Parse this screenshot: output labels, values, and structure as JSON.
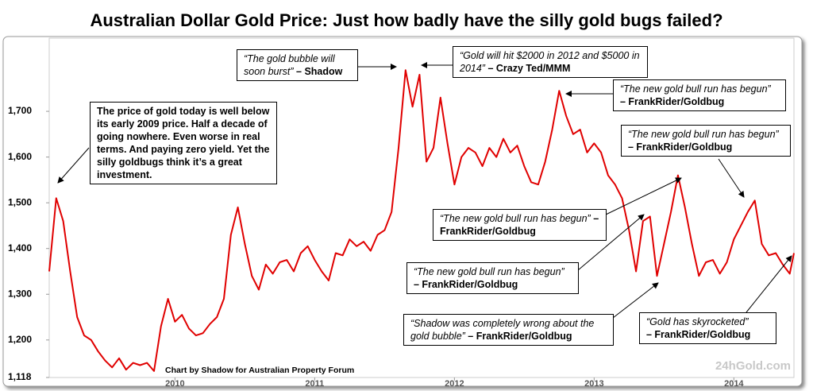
{
  "chart_data": {
    "type": "line",
    "title": "Australian Dollar Gold Price: Just how badly have the silly gold bugs failed?",
    "source": "Chart by Shadow for Australian Property Forum",
    "watermark": "24hGold.com",
    "color": "#e00000",
    "xlim": [
      2009.1,
      2014.43
    ],
    "xticks": [
      2010,
      2011,
      2012,
      2013,
      2014
    ],
    "ylim": [
      1118,
      1860
    ],
    "yticks": [
      {
        "value": 1118,
        "label": "1,118"
      },
      {
        "value": 1200,
        "label": "1,200"
      },
      {
        "value": 1300,
        "label": "1,300"
      },
      {
        "value": 1400,
        "label": "1,400"
      },
      {
        "value": 1500,
        "label": "1,500"
      },
      {
        "value": 1600,
        "label": "1,600"
      },
      {
        "value": 1700,
        "label": "1,700"
      }
    ],
    "grid": false,
    "x": [
      2009.1,
      2009.15,
      2009.2,
      2009.25,
      2009.3,
      2009.35,
      2009.4,
      2009.45,
      2009.5,
      2009.55,
      2009.6,
      2009.65,
      2009.7,
      2009.75,
      2009.8,
      2009.85,
      2009.9,
      2009.95,
      2010.0,
      2010.05,
      2010.1,
      2010.15,
      2010.2,
      2010.25,
      2010.3,
      2010.35,
      2010.4,
      2010.45,
      2010.5,
      2010.55,
      2010.6,
      2010.65,
      2010.7,
      2010.75,
      2010.8,
      2010.85,
      2010.9,
      2010.95,
      2011.0,
      2011.05,
      2011.1,
      2011.15,
      2011.2,
      2011.25,
      2011.3,
      2011.35,
      2011.4,
      2011.45,
      2011.5,
      2011.55,
      2011.6,
      2011.65,
      2011.7,
      2011.75,
      2011.8,
      2011.85,
      2011.9,
      2011.95,
      2012.0,
      2012.05,
      2012.1,
      2012.15,
      2012.2,
      2012.25,
      2012.3,
      2012.35,
      2012.4,
      2012.45,
      2012.5,
      2012.55,
      2012.6,
      2012.65,
      2012.7,
      2012.75,
      2012.8,
      2012.85,
      2012.9,
      2012.95,
      2013.0,
      2013.05,
      2013.1,
      2013.15,
      2013.2,
      2013.25,
      2013.3,
      2013.35,
      2013.4,
      2013.45,
      2013.5,
      2013.55,
      2013.6,
      2013.65,
      2013.7,
      2013.75,
      2013.8,
      2013.85,
      2013.9,
      2013.95,
      2014.0,
      2014.05,
      2014.1,
      2014.15,
      2014.2,
      2014.25,
      2014.3,
      2014.35,
      2014.4,
      2014.43
    ],
    "values": [
      1350,
      1510,
      1460,
      1350,
      1250,
      1210,
      1200,
      1175,
      1155,
      1140,
      1160,
      1135,
      1150,
      1145,
      1150,
      1132,
      1230,
      1290,
      1240,
      1255,
      1225,
      1210,
      1215,
      1235,
      1250,
      1290,
      1430,
      1490,
      1410,
      1340,
      1310,
      1365,
      1345,
      1370,
      1375,
      1350,
      1390,
      1405,
      1375,
      1350,
      1330,
      1390,
      1385,
      1420,
      1405,
      1415,
      1395,
      1430,
      1440,
      1480,
      1620,
      1790,
      1710,
      1780,
      1590,
      1620,
      1730,
      1630,
      1540,
      1600,
      1620,
      1610,
      1580,
      1620,
      1600,
      1640,
      1610,
      1625,
      1580,
      1545,
      1540,
      1590,
      1660,
      1745,
      1690,
      1650,
      1660,
      1610,
      1630,
      1610,
      1560,
      1540,
      1510,
      1440,
      1350,
      1460,
      1470,
      1340,
      1410,
      1480,
      1560,
      1490,
      1410,
      1340,
      1370,
      1375,
      1345,
      1370,
      1420,
      1450,
      1480,
      1505,
      1410,
      1385,
      1390,
      1365,
      1345,
      1390
    ],
    "annotations": [
      {
        "text": "The price of gold today is well below its early 2009 price. Half a decade of going nowhere. Even worse in real terms. And paying zero yield. Yet the silly goldbugs think it’s a great investment."
      },
      {
        "quote": "“The gold bubble will soon burst”",
        "author": "– Shadow"
      },
      {
        "quote": "“Gold will hit $2000 in 2012 and $5000 in 2014”",
        "author": "– Crazy Ted/MMM"
      },
      {
        "quote": "“The new gold bull run has begun”",
        "author": "– FrankRider/Goldbug"
      },
      {
        "quote": "“The new gold bull run has begun”",
        "author": "– FrankRider/Goldbug"
      },
      {
        "quote": "“The new gold bull run has begun”",
        "author": "– FrankRider/Goldbug"
      },
      {
        "quote": "“The new gold bull run has begun”",
        "author": "– FrankRider/Goldbug"
      },
      {
        "quote": "“Shadow was completely wrong about the gold bubble”",
        "author": "– FrankRider/Goldbug"
      },
      {
        "quote": "“Gold has skyrocketed”",
        "author": "– FrankRider/Goldbug"
      }
    ]
  }
}
